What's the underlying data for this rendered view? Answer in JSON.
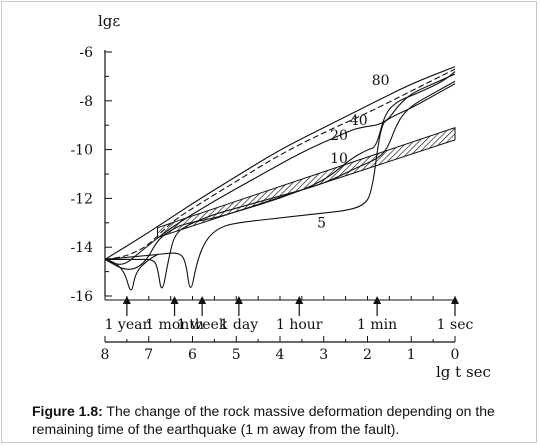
{
  "chart_data": {
    "type": "line",
    "y_axis_label": "lgε",
    "x_axis_label": "lg t sec",
    "ylim": [
      -16,
      -6
    ],
    "y_ticks": [
      -6,
      -8,
      -10,
      -12,
      -14,
      -16
    ],
    "y_tick_labels": [
      "-6",
      "-8",
      "-10",
      "-12",
      "-14",
      "-16"
    ],
    "x_reversed": true,
    "xlim": [
      8,
      0
    ],
    "x_ticks": [
      8,
      7,
      6,
      5,
      4,
      3,
      2,
      1,
      0
    ],
    "x_tick_labels": [
      "8",
      "7",
      "6",
      "5",
      "4",
      "3",
      "2",
      "1",
      "0"
    ],
    "time_markers": [
      {
        "label": "1 year",
        "lgt": 7.5
      },
      {
        "label": "1 month",
        "lgt": 6.41
      },
      {
        "label": "1 week",
        "lgt": 5.78
      },
      {
        "label": "1 day",
        "lgt": 4.94
      },
      {
        "label": "1 hour",
        "lgt": 3.56
      },
      {
        "label": "1 min",
        "lgt": 1.78
      },
      {
        "label": "1 sec",
        "lgt": 0
      }
    ],
    "series": [
      {
        "name": "80",
        "style": "solid",
        "points": [
          [
            8,
            -14.5
          ],
          [
            7,
            -13.4
          ],
          [
            6,
            -12.2
          ],
          [
            5,
            -11.1
          ],
          [
            4,
            -10.0
          ],
          [
            3,
            -9.1
          ],
          [
            2,
            -8.2
          ],
          [
            1,
            -7.3
          ],
          [
            0,
            -6.6
          ]
        ]
      },
      {
        "name": "40",
        "style": "solid",
        "points": [
          [
            8,
            -14.5
          ],
          [
            7.6,
            -14.8
          ],
          [
            7.2,
            -14.2
          ],
          [
            6.5,
            -13.2
          ],
          [
            5.5,
            -12.1
          ],
          [
            4.5,
            -11.1
          ],
          [
            3.5,
            -10.1
          ],
          [
            2.5,
            -9.3
          ],
          [
            2.2,
            -9.1
          ],
          [
            1.6,
            -8.95
          ],
          [
            1.3,
            -8.2
          ],
          [
            1.0,
            -7.7
          ],
          [
            0.5,
            -7.3
          ],
          [
            0,
            -6.9
          ]
        ]
      },
      {
        "name": "20",
        "style": "solid",
        "points": [
          [
            8,
            -14.5
          ],
          [
            7.5,
            -15.0
          ],
          [
            7.1,
            -14.7
          ],
          [
            6.8,
            -13.7
          ],
          [
            6.5,
            -13.3
          ],
          [
            6.2,
            -13.05
          ],
          [
            5.5,
            -12.8
          ],
          [
            5,
            -12.55
          ],
          [
            4,
            -12.0
          ],
          [
            3,
            -11.3
          ],
          [
            2.4,
            -10.4
          ],
          [
            2.0,
            -10.0
          ],
          [
            1.8,
            -9.9
          ],
          [
            1.6,
            -8.5
          ],
          [
            1.3,
            -8.0
          ],
          [
            1.0,
            -7.8
          ],
          [
            0.5,
            -7.4
          ],
          [
            0.2,
            -7.1
          ],
          [
            0,
            -6.8
          ]
        ]
      },
      {
        "name": "10",
        "style": "solid",
        "points": [
          [
            8,
            -14.5
          ],
          [
            7.2,
            -14.5
          ],
          [
            6.9,
            -14.5
          ],
          [
            6.8,
            -14.8
          ],
          [
            6.7,
            -16
          ],
          [
            6.55,
            -14.5
          ],
          [
            6.4,
            -13.4
          ],
          [
            6,
            -13.0
          ],
          [
            5.5,
            -12.65
          ],
          [
            5,
            -12.4
          ],
          [
            4,
            -11.9
          ],
          [
            3,
            -11.4
          ],
          [
            2.2,
            -10.7
          ],
          [
            1.8,
            -10.4
          ],
          [
            1.55,
            -10.0
          ],
          [
            1.3,
            -8.8
          ],
          [
            1.0,
            -8.2
          ],
          [
            0.5,
            -7.7
          ],
          [
            0,
            -7.2
          ]
        ]
      },
      {
        "name": "5",
        "style": "solid",
        "points": [
          [
            8,
            -14.5
          ],
          [
            6.8,
            -14.3
          ],
          [
            6.3,
            -14.2
          ],
          [
            6.15,
            -14.6
          ],
          [
            6.05,
            -16
          ],
          [
            5.9,
            -14.6
          ],
          [
            5.7,
            -13.7
          ],
          [
            5.4,
            -13.2
          ],
          [
            5,
            -13.0
          ],
          [
            4,
            -12.8
          ],
          [
            3,
            -12.6
          ],
          [
            2.5,
            -12.5
          ],
          [
            2.1,
            -12.3
          ],
          [
            1.9,
            -11.8
          ],
          [
            1.7,
            -9.0
          ],
          [
            1.5,
            -8.7
          ],
          [
            1.0,
            -8.3
          ],
          [
            0.5,
            -7.8
          ],
          [
            0,
            -7.3
          ]
        ]
      },
      {
        "name": "",
        "style": "dashed",
        "points": [
          [
            8,
            -14.5
          ],
          [
            7.6,
            -14.4
          ],
          [
            7.3,
            -14.2
          ],
          [
            7.0,
            -13.9
          ],
          [
            6.5,
            -13.0
          ],
          [
            6,
            -12.4
          ],
          [
            5,
            -11.3
          ],
          [
            4,
            -10.2
          ],
          [
            3,
            -9.3
          ],
          [
            2,
            -8.5
          ],
          [
            1,
            -7.6
          ],
          [
            0,
            -6.7
          ]
        ]
      },
      {
        "name": "",
        "style": "solid",
        "points": [
          [
            8,
            -14.5
          ],
          [
            7.8,
            -14.6
          ],
          [
            7.55,
            -15.0
          ],
          [
            7.4,
            -16
          ],
          [
            7.3,
            -15.0
          ],
          [
            7.0,
            -14.5
          ],
          [
            6.8,
            -14.3
          ]
        ]
      }
    ],
    "band": {
      "style": "hatched",
      "upper": [
        [
          6.8,
          -13.2
        ],
        [
          0,
          -9.1
        ]
      ],
      "lower": [
        [
          6.8,
          -13.6
        ],
        [
          0,
          -9.6
        ]
      ]
    },
    "curve_labels": [
      {
        "text": "80",
        "lgt": 1.7,
        "lgeps": -7.35
      },
      {
        "text": "40",
        "lgt": 2.2,
        "lgeps": -9.0
      },
      {
        "text": "20",
        "lgt": 2.65,
        "lgeps": -9.6
      },
      {
        "text": "10",
        "lgt": 2.65,
        "lgeps": -10.55
      },
      {
        "text": "5",
        "lgt": 3.05,
        "lgeps": -13.2
      }
    ]
  },
  "caption": {
    "label": "Figure 1.8:",
    "text": " The change of the rock massive deformation depending on the remaining time of the earthquake (1 m away from the fault)."
  }
}
